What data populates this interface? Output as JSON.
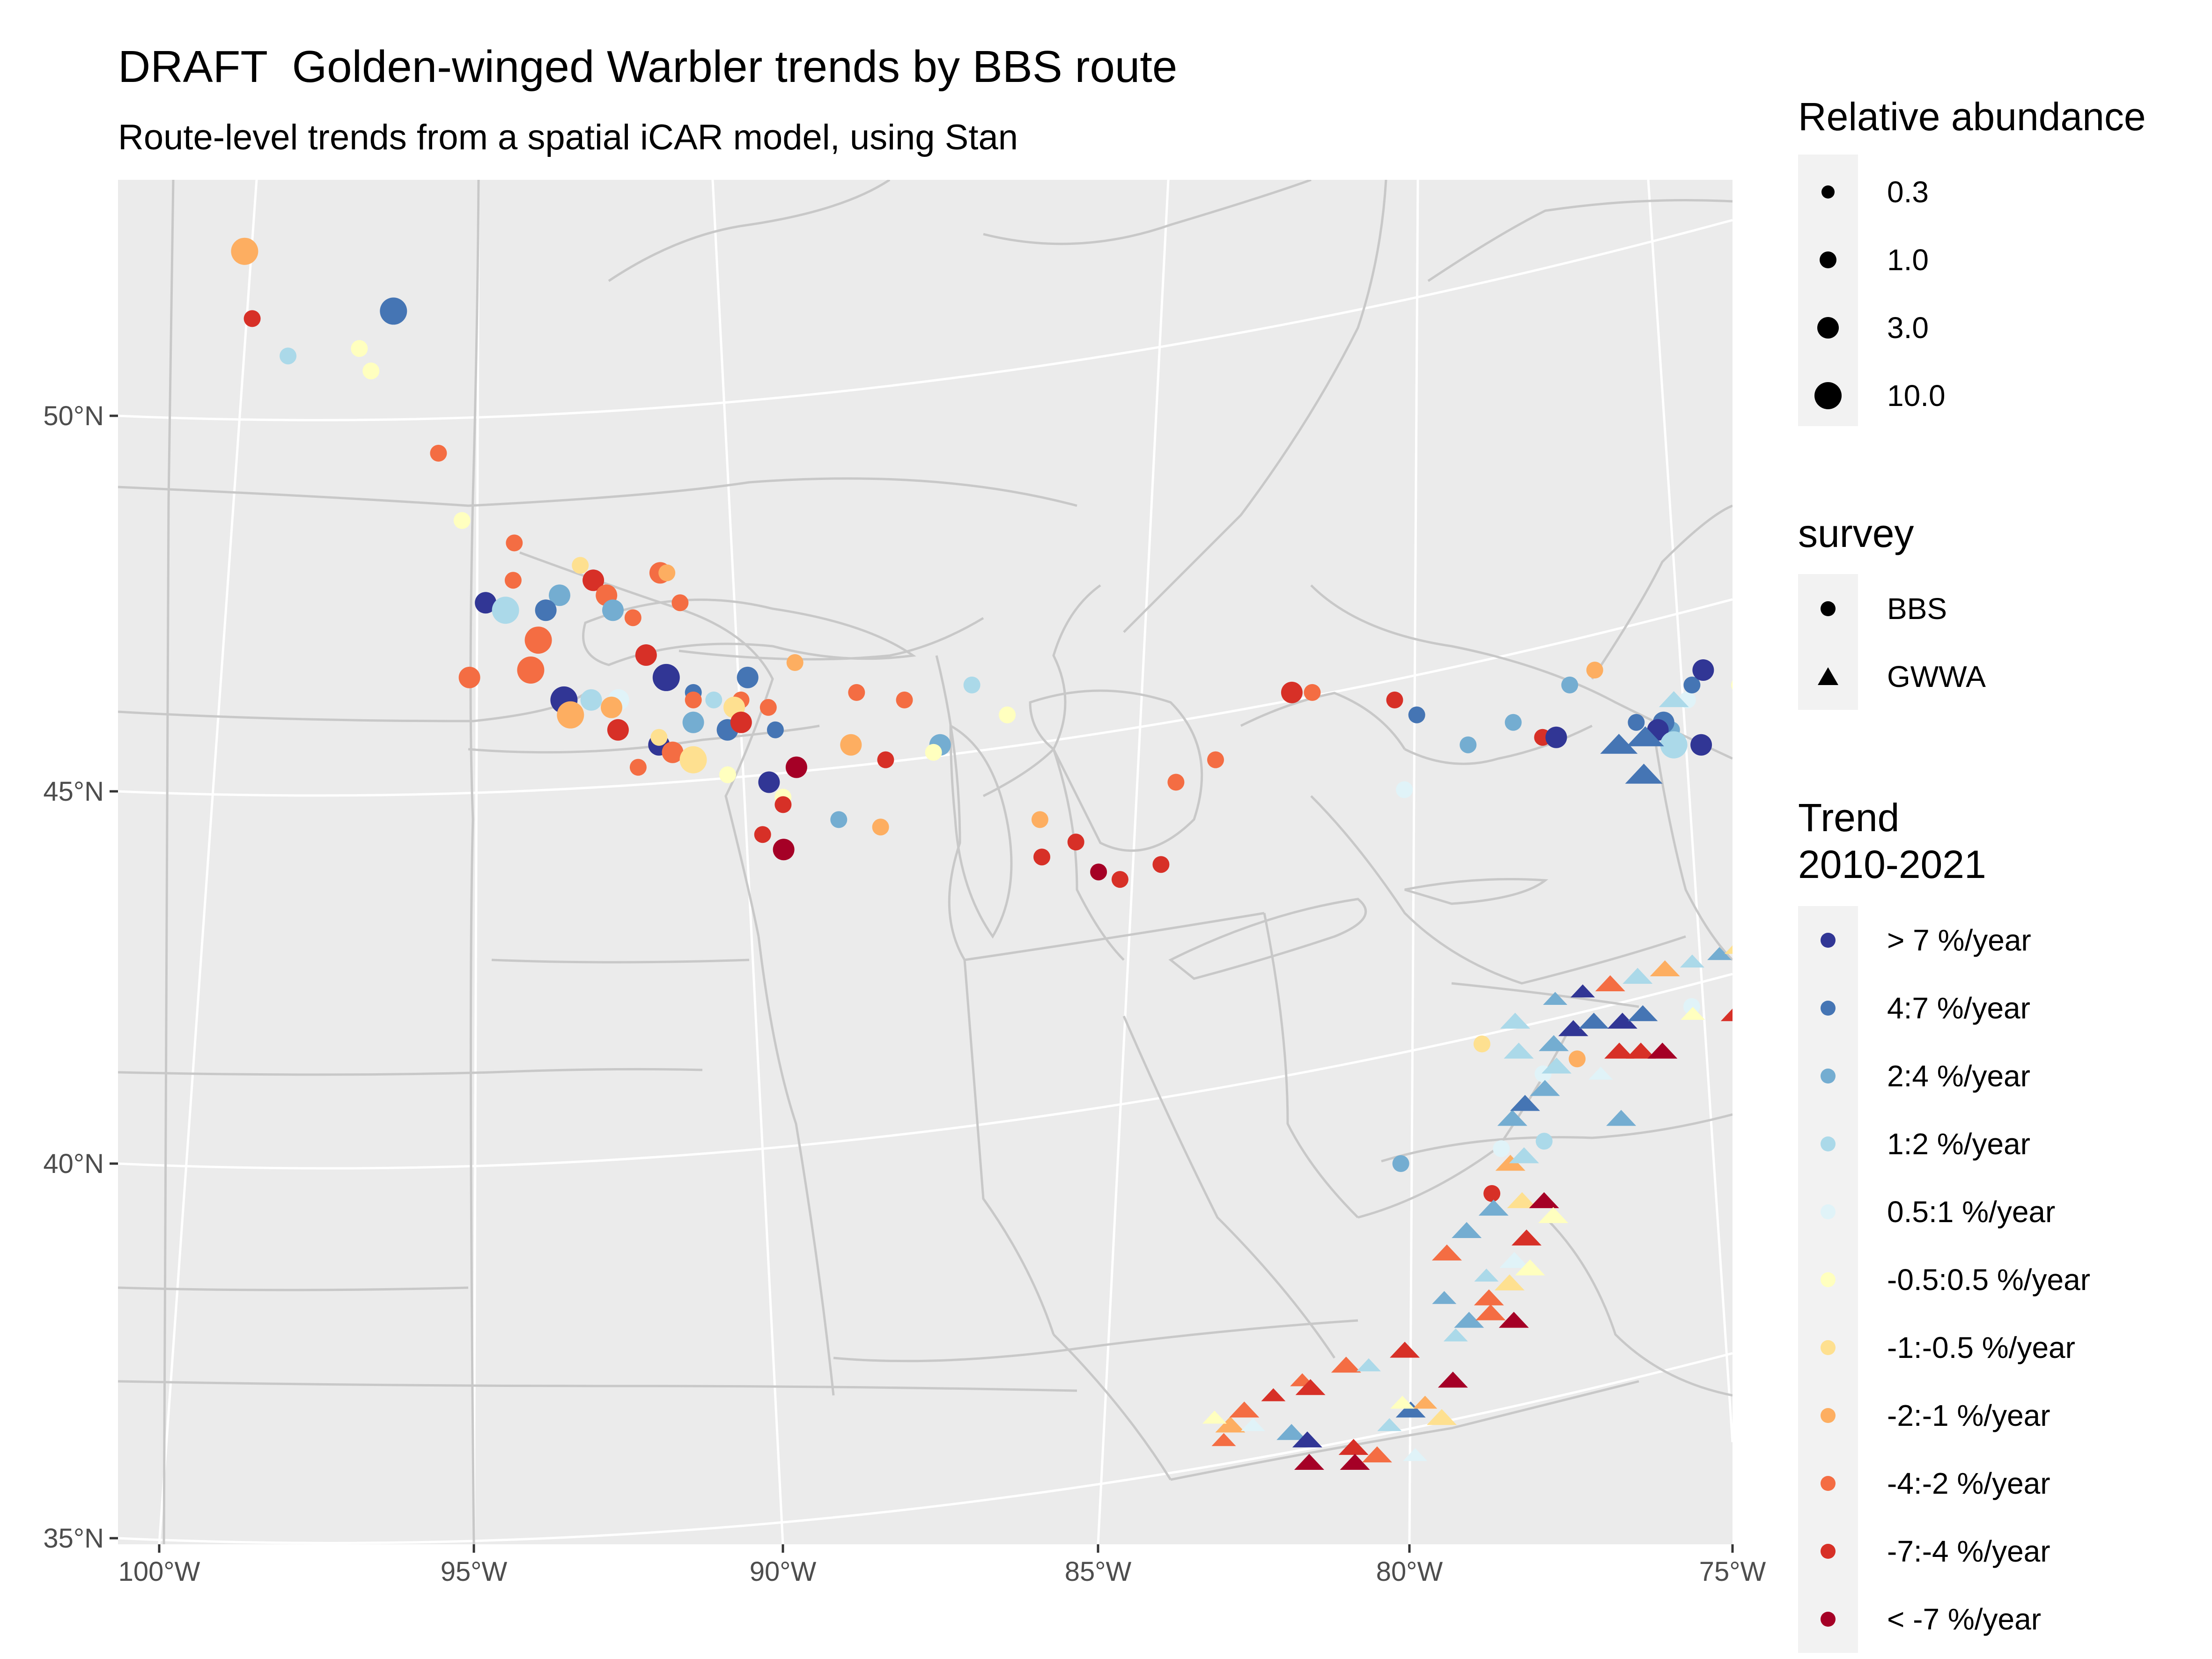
{
  "title": "DRAFT  Golden-winged Warbler trends by BBS route",
  "subtitle": "Route-level trends from a spatial iCAR model, using Stan",
  "chart_data": {
    "type": "scatter",
    "map": "Albers-style conic projection of the eastern North American Great Lakes and Appalachian region with state/provincial boundaries",
    "x_ticks": [
      "100°W",
      "95°W",
      "90°W",
      "85°W",
      "80°W",
      "75°W"
    ],
    "y_ticks": [
      "50°N",
      "45°N",
      "40°N",
      "35°N"
    ],
    "xlim": [
      -101,
      -75
    ],
    "ylim": [
      34.8,
      52.8
    ],
    "grid": true,
    "legends": {
      "size": {
        "title": "Relative abundance",
        "labels": [
          "0.3",
          "1.0",
          "3.0",
          "10.0"
        ],
        "values": [
          0.3,
          1.0,
          3.0,
          10.0
        ]
      },
      "shape": {
        "title": "survey",
        "labels": [
          "BBS",
          "GWWA"
        ],
        "shapes": [
          "circle",
          "triangle"
        ]
      },
      "color": {
        "title_line1": "Trend",
        "title_line2": "2010-2021",
        "labels": [
          "> 7 %/year",
          "4:7 %/year",
          "2:4 %/year",
          "1:2 %/year",
          "0.5:1 %/year",
          "-0.5:0.5 %/year",
          "-1:-0.5 %/year",
          "-2:-1 %/year",
          "-4:-2 %/year",
          "-7:-4 %/year",
          "< -7 %/year"
        ],
        "colors": [
          "#313695",
          "#4575b4",
          "#74add1",
          "#abd9e9",
          "#e0f3f8",
          "#ffffbf",
          "#fee090",
          "#fdae61",
          "#f46d43",
          "#d73027",
          "#a50026"
        ]
      }
    },
    "bbs_routes": [
      [
        -99.4,
        52.2,
        3,
        7
      ],
      [
        -99.2,
        51.3,
        1,
        9
      ],
      [
        -97.0,
        51.4,
        3,
        1
      ],
      [
        -98.6,
        50.8,
        1,
        3
      ],
      [
        -97.5,
        50.9,
        1,
        5
      ],
      [
        -97.3,
        50.6,
        1,
        5
      ],
      [
        -96.2,
        49.5,
        1,
        8
      ],
      [
        -95.8,
        48.6,
        1,
        5
      ],
      [
        -95.0,
        48.3,
        1,
        8
      ],
      [
        -94.0,
        48.0,
        1,
        6
      ],
      [
        -95.0,
        47.8,
        1,
        8
      ],
      [
        -93.8,
        47.8,
        2,
        9
      ],
      [
        -93.6,
        47.6,
        2,
        8
      ],
      [
        -92.8,
        47.9,
        2,
        8
      ],
      [
        -92.7,
        47.9,
        1,
        7
      ],
      [
        -95.4,
        47.5,
        2,
        0
      ],
      [
        -95.1,
        47.4,
        3,
        3
      ],
      [
        -94.3,
        47.6,
        2,
        2
      ],
      [
        -93.5,
        47.4,
        2,
        2
      ],
      [
        -94.5,
        47.4,
        2,
        1
      ],
      [
        -93.2,
        47.3,
        1,
        8
      ],
      [
        -92.5,
        47.5,
        1,
        8
      ],
      [
        -94.6,
        47.0,
        3,
        8
      ],
      [
        -93.0,
        46.8,
        2,
        9
      ],
      [
        -95.6,
        46.5,
        2,
        8
      ],
      [
        -94.7,
        46.6,
        3,
        8
      ],
      [
        -92.7,
        46.5,
        3,
        0
      ],
      [
        -92.3,
        46.3,
        1,
        1
      ],
      [
        -91.5,
        46.5,
        2,
        1
      ],
      [
        -90.8,
        46.7,
        1,
        7
      ],
      [
        -89.9,
        46.3,
        1,
        8
      ],
      [
        -89.2,
        46.2,
        1,
        8
      ],
      [
        -94.2,
        46.2,
        3,
        0
      ],
      [
        -93.8,
        46.2,
        2,
        3
      ],
      [
        -93.4,
        46.2,
        2,
        4
      ],
      [
        -93.5,
        46.1,
        2,
        7
      ],
      [
        -92.3,
        46.2,
        1,
        8
      ],
      [
        -94.1,
        46.0,
        3,
        7
      ],
      [
        -92.0,
        46.2,
        1,
        3
      ],
      [
        -91.6,
        46.2,
        1,
        8
      ],
      [
        -91.2,
        46.1,
        1,
        8
      ],
      [
        -91.7,
        46.1,
        2,
        6
      ],
      [
        -92.3,
        45.9,
        2,
        2
      ],
      [
        -91.8,
        45.8,
        2,
        1
      ],
      [
        -91.1,
        45.8,
        1,
        1
      ],
      [
        -90.0,
        45.6,
        2,
        7
      ],
      [
        -93.4,
        45.8,
        2,
        9
      ],
      [
        -92.8,
        45.6,
        2,
        0
      ],
      [
        -92.8,
        45.7,
        1,
        6
      ],
      [
        -92.6,
        45.5,
        2,
        8
      ],
      [
        -92.3,
        45.4,
        3,
        6
      ],
      [
        -93.1,
        45.3,
        1,
        8
      ],
      [
        -91.6,
        45.9,
        2,
        9
      ],
      [
        -91.8,
        45.2,
        1,
        5
      ],
      [
        -91.2,
        45.1,
        2,
        0
      ],
      [
        -91.0,
        44.9,
        1,
        5
      ],
      [
        -91.0,
        44.8,
        1,
        9
      ],
      [
        -90.2,
        44.6,
        1,
        2
      ],
      [
        -89.6,
        44.5,
        1,
        7
      ],
      [
        -91.3,
        44.4,
        1,
        9
      ],
      [
        -90.8,
        45.3,
        2,
        10
      ],
      [
        -91.0,
        44.2,
        2,
        10
      ],
      [
        -89.5,
        45.4,
        1,
        9
      ],
      [
        -88.7,
        45.6,
        2,
        2
      ],
      [
        -88.8,
        45.5,
        1,
        5
      ],
      [
        -88.2,
        46.4,
        1,
        3
      ],
      [
        -87.7,
        46.0,
        1,
        5
      ],
      [
        -86.8,
        44.3,
        1,
        9
      ],
      [
        -87.3,
        44.6,
        1,
        7
      ],
      [
        -87.3,
        44.1,
        1,
        9
      ],
      [
        -86.5,
        43.9,
        1,
        10
      ],
      [
        -86.2,
        43.8,
        1,
        9
      ],
      [
        -85.6,
        44.0,
        1,
        9
      ],
      [
        -85.3,
        45.1,
        1,
        8
      ],
      [
        -84.7,
        45.4,
        1,
        8
      ],
      [
        -83.5,
        46.3,
        2,
        9
      ],
      [
        -83.2,
        46.3,
        1,
        8
      ],
      [
        -82.0,
        46.2,
        1,
        9
      ],
      [
        -81.7,
        46.0,
        1,
        1
      ],
      [
        -81.0,
        45.6,
        1,
        2
      ],
      [
        -79.9,
        45.7,
        1,
        9
      ],
      [
        -80.3,
        45.9,
        1,
        2
      ],
      [
        -79.4,
        46.4,
        1,
        2
      ],
      [
        -79.0,
        46.6,
        1,
        7
      ],
      [
        -79.7,
        45.7,
        2,
        0
      ],
      [
        -78.5,
        45.9,
        1,
        1
      ],
      [
        -78.0,
        45.8,
        1,
        2
      ],
      [
        -77.7,
        46.2,
        1,
        4
      ],
      [
        -78.1,
        45.9,
        2,
        1
      ],
      [
        -78.2,
        45.8,
        2,
        0
      ],
      [
        -77.6,
        46.4,
        1,
        1
      ],
      [
        -77.4,
        46.6,
        2,
        0
      ],
      [
        -78.0,
        45.6,
        3,
        3
      ],
      [
        -76.9,
        46.4,
        1,
        5
      ],
      [
        -76.4,
        46.2,
        1,
        4
      ],
      [
        -77.6,
        45.6,
        2,
        0
      ],
      [
        -75.9,
        44.3,
        1,
        3
      ],
      [
        -82.0,
        45.0,
        1,
        4
      ],
      [
        -82.6,
        40.0,
        1,
        2
      ],
      [
        -80.6,
        40.3,
        1,
        3
      ],
      [
        -81.2,
        40.2,
        1,
        4
      ],
      [
        -81.4,
        39.6,
        1,
        9
      ],
      [
        -81.3,
        41.6,
        1,
        6
      ],
      [
        -80.0,
        41.4,
        1,
        7
      ],
      [
        -80.5,
        41.2,
        1,
        4
      ],
      [
        -78.3,
        42.1,
        1,
        4
      ],
      [
        -76.6,
        42.6,
        1,
        2
      ]
    ],
    "gwwa_sites": [
      [
        -85.3,
        36.3,
        1,
        8
      ],
      [
        -85.2,
        36.5,
        2,
        7
      ],
      [
        -85.0,
        36.7,
        2,
        8
      ],
      [
        -84.6,
        36.9,
        1,
        9
      ],
      [
        -84.2,
        37.1,
        1,
        8
      ],
      [
        -84.1,
        37.0,
        2,
        9
      ],
      [
        -83.6,
        37.3,
        2,
        8
      ],
      [
        -83.3,
        37.3,
        1,
        3
      ],
      [
        -84.9,
        36.5,
        1,
        4
      ],
      [
        -84.4,
        36.4,
        2,
        2
      ],
      [
        -84.2,
        36.3,
        2,
        0
      ],
      [
        -83.6,
        36.2,
        2,
        9
      ],
      [
        -83.6,
        36.0,
        2,
        10
      ],
      [
        -84.2,
        36.0,
        2,
        10
      ],
      [
        -83.3,
        36.1,
        2,
        8
      ],
      [
        -83.1,
        36.5,
        1,
        3
      ],
      [
        -82.8,
        36.7,
        2,
        1
      ],
      [
        -82.6,
        36.8,
        1,
        7
      ],
      [
        -82.2,
        37.1,
        2,
        10
      ],
      [
        -82.8,
        36.1,
        1,
        4
      ],
      [
        -82.9,
        36.8,
        1,
        5
      ],
      [
        -82.4,
        36.6,
        2,
        6
      ],
      [
        -82.8,
        37.5,
        2,
        9
      ],
      [
        -82.1,
        37.7,
        1,
        3
      ],
      [
        -81.9,
        37.9,
        2,
        2
      ],
      [
        -81.6,
        38.0,
        2,
        8
      ],
      [
        -81.3,
        37.9,
        2,
        10
      ],
      [
        -81.6,
        38.2,
        2,
        8
      ],
      [
        -81.3,
        38.4,
        2,
        6
      ],
      [
        -81.2,
        38.7,
        2,
        4
      ],
      [
        -81.0,
        38.6,
        2,
        5
      ],
      [
        -81.0,
        39.0,
        2,
        9
      ],
      [
        -82.2,
        38.2,
        1,
        2
      ],
      [
        -82.1,
        38.8,
        2,
        8
      ],
      [
        -81.8,
        39.1,
        2,
        2
      ],
      [
        -81.4,
        39.4,
        2,
        2
      ],
      [
        -81.0,
        39.5,
        2,
        6
      ],
      [
        -80.7,
        39.5,
        2,
        10
      ],
      [
        -80.6,
        39.3,
        2,
        5
      ],
      [
        -81.6,
        38.5,
        1,
        3
      ],
      [
        -81.1,
        40.0,
        2,
        7
      ],
      [
        -80.9,
        40.1,
        2,
        3
      ],
      [
        -81.0,
        40.6,
        2,
        2
      ],
      [
        -80.8,
        40.8,
        2,
        1
      ],
      [
        -80.5,
        41.0,
        2,
        2
      ],
      [
        -80.3,
        41.3,
        2,
        3
      ],
      [
        -80.8,
        41.5,
        2,
        3
      ],
      [
        -80.3,
        41.6,
        2,
        2
      ],
      [
        -80.0,
        41.8,
        2,
        0
      ],
      [
        -79.7,
        41.9,
        2,
        1
      ],
      [
        -79.3,
        41.9,
        2,
        0
      ],
      [
        -79.0,
        42.0,
        2,
        1
      ],
      [
        -79.4,
        41.5,
        2,
        9
      ],
      [
        -79.1,
        41.5,
        2,
        9
      ],
      [
        -78.8,
        41.5,
        2,
        10
      ],
      [
        -80.8,
        41.9,
        2,
        3
      ],
      [
        -80.2,
        42.2,
        1,
        2
      ],
      [
        -79.8,
        42.3,
        1,
        0
      ],
      [
        -79.4,
        42.4,
        2,
        8
      ],
      [
        -79.0,
        42.5,
        2,
        3
      ],
      [
        -78.6,
        42.6,
        2,
        7
      ],
      [
        -78.2,
        42.7,
        1,
        3
      ],
      [
        -77.8,
        42.8,
        1,
        2
      ],
      [
        -77.5,
        42.9,
        2,
        6
      ],
      [
        -77.3,
        42.1,
        2,
        9
      ],
      [
        -77.7,
        42.0,
        2,
        9
      ],
      [
        -78.3,
        42.0,
        1,
        5
      ],
      [
        -77.2,
        43.1,
        1,
        7
      ],
      [
        -76.9,
        42.9,
        2,
        1
      ],
      [
        -76.6,
        42.9,
        2,
        1
      ],
      [
        -76.3,
        42.8,
        2,
        9
      ],
      [
        -76.1,
        42.8,
        2,
        8
      ],
      [
        -76.4,
        43.0,
        2,
        10
      ],
      [
        -75.9,
        43.5,
        2,
        2
      ],
      [
        -76.2,
        43.8,
        1,
        2
      ],
      [
        -79.5,
        40.6,
        2,
        2
      ],
      [
        -79.7,
        41.2,
        1,
        4
      ],
      [
        -78.5,
        45.2,
        3,
        1
      ],
      [
        -78.8,
        45.6,
        3,
        1
      ],
      [
        -78.4,
        45.7,
        3,
        1
      ],
      [
        -77.9,
        46.2,
        2,
        3
      ],
      [
        -85.4,
        36.6,
        1,
        5
      ]
    ]
  }
}
